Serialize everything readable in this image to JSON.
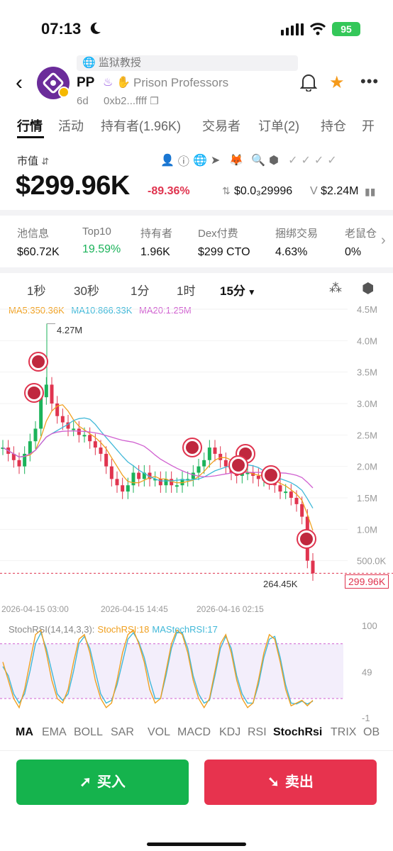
{
  "status": {
    "time": "07:13",
    "battery": "95"
  },
  "notice": "监狱教授",
  "token": {
    "symbol": "PP",
    "name": "Prison Professors",
    "age": "6d",
    "address": "0xb2...ffff"
  },
  "tabs": [
    "行情",
    "活动",
    "持有者(1.96K)",
    "交易者",
    "订单(2)",
    "持仓",
    "开"
  ],
  "market": {
    "label": "市值",
    "value": "$299.96K",
    "change": "-89.36%",
    "price": "$0.0₃29996",
    "volume_prefix": "V",
    "volume": "$2.24M"
  },
  "stats": [
    {
      "label": "池信息",
      "value": "$60.72K"
    },
    {
      "label": "Top10",
      "value": "19.59%",
      "green": true
    },
    {
      "label": "持有者",
      "value": "1.96K"
    },
    {
      "label": "Dex付费",
      "value": "$299 CTO"
    },
    {
      "label": "捆绑交易",
      "value": "4.63%"
    },
    {
      "label": "老鼠仓",
      "value": "0%"
    }
  ],
  "intervals": [
    "1秒",
    "30秒",
    "1分",
    "1时",
    "15分"
  ],
  "ma": {
    "ma5": "MA5:350.36K",
    "ma10": "MA10:866.33K",
    "ma20": "MA20:1.25M"
  },
  "chart_data": {
    "type": "candlestick",
    "interval": "15分",
    "y_axis_labels": [
      "4.5M",
      "4.0M",
      "3.5M",
      "3.0M",
      "2.5M",
      "2.0M",
      "1.5M",
      "1.0M",
      "500.0K"
    ],
    "x_axis_labels": [
      "2026-04-15 03:00",
      "2026-04-15 14:45",
      "2026-04-16 02:15"
    ],
    "high_label": "4.27M",
    "low_label": "264.45K",
    "current_label": "299.96K",
    "closes": [
      2.3,
      2.2,
      2.1,
      2.0,
      2.2,
      2.4,
      2.6,
      3.1,
      3.3,
      3.0,
      2.8,
      2.7,
      2.6,
      2.6,
      2.5,
      2.5,
      2.4,
      2.3,
      2.2,
      2.0,
      1.8,
      1.7,
      1.6,
      1.7,
      1.9,
      1.8,
      1.9,
      1.8,
      1.8,
      1.7,
      1.8,
      1.7,
      1.7,
      1.8,
      1.8,
      1.9,
      2.0,
      2.1,
      2.3,
      2.2,
      2.1,
      2.0,
      1.9,
      1.85,
      1.9,
      1.9,
      1.85,
      1.8,
      1.8,
      1.75,
      1.7,
      1.6,
      1.6,
      1.5,
      1.4,
      1.2,
      0.5,
      0.3
    ],
    "colors": {
      "up": "#1bb35a",
      "down": "#e0344f",
      "ma5": "#f0a020",
      "ma10": "#40b8d8",
      "ma20": "#d060d0"
    },
    "stoch": {
      "header": "StochRSI(14,14,3,3):",
      "k_label": "StochRSI:18",
      "d_label": "MAStochRSI:17",
      "levels": [
        "100",
        "49",
        "-1"
      ],
      "k": [
        60,
        40,
        20,
        10,
        30,
        60,
        90,
        95,
        70,
        40,
        20,
        15,
        30,
        60,
        85,
        90,
        70,
        40,
        20,
        10,
        15,
        40,
        70,
        90,
        95,
        80,
        60,
        30,
        15,
        20,
        50,
        80,
        95,
        90,
        70,
        40,
        20,
        10,
        20,
        50,
        80,
        90,
        70,
        40,
        20,
        10,
        15,
        40,
        70,
        90,
        85,
        60,
        30,
        12,
        15,
        18,
        12,
        18
      ],
      "d": [
        55,
        45,
        25,
        15,
        25,
        50,
        80,
        92,
        75,
        50,
        25,
        18,
        25,
        50,
        80,
        88,
        75,
        50,
        25,
        15,
        18,
        35,
        60,
        85,
        92,
        82,
        65,
        40,
        20,
        20,
        45,
        75,
        92,
        92,
        75,
        45,
        25,
        15,
        18,
        45,
        75,
        88,
        75,
        45,
        25,
        15,
        15,
        35,
        65,
        85,
        88,
        65,
        35,
        15,
        14,
        17,
        14,
        17
      ]
    }
  },
  "indicators": [
    "MA",
    "EMA",
    "BOLL",
    "SAR",
    "VOL",
    "MACD",
    "KDJ",
    "RSI",
    "StochRsi",
    "TRIX",
    "OB"
  ],
  "actions": {
    "buy": "买入",
    "sell": "卖出"
  }
}
